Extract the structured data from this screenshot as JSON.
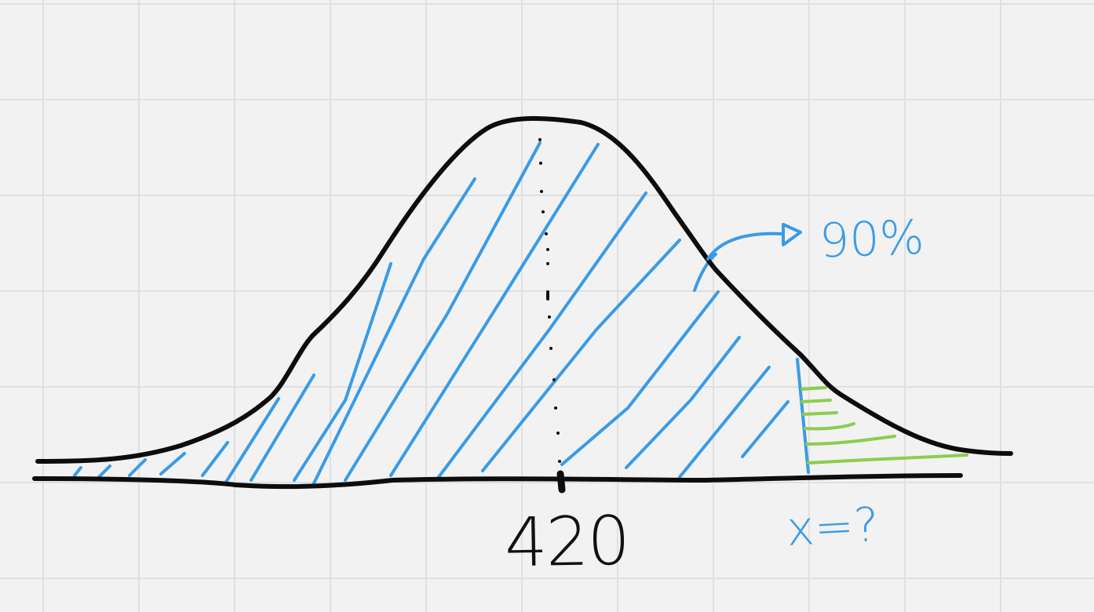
{
  "diagram": {
    "mean_label": "420",
    "shaded_percent_label": "90%",
    "unknown_label": "x=?",
    "colors": {
      "background": "#f2f2f2",
      "grid": "#e0e0e0",
      "curve": "#0d0d0d",
      "hatch_blue": "#3a9be6",
      "hatch_green": "#8ccd4d"
    }
  }
}
